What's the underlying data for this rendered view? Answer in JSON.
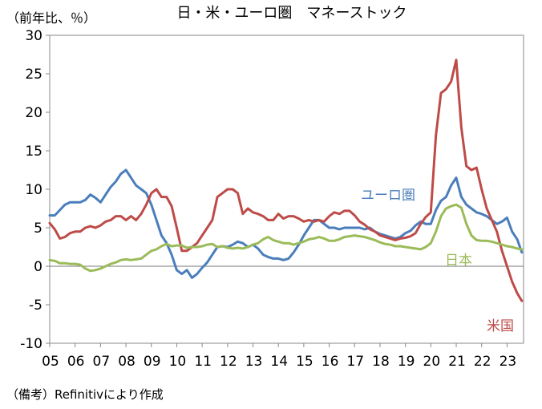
{
  "chart_data": {
    "type": "line",
    "title": "日・米・ユーロ圏　マネーストック",
    "unit_label": "（前年比、％）",
    "note": "（備考）Refinitivにより作成",
    "x_tick_labels": [
      "05",
      "06",
      "07",
      "08",
      "09",
      "10",
      "11",
      "12",
      "13",
      "14",
      "15",
      "16",
      "17",
      "18",
      "19",
      "20",
      "21",
      "22",
      "23"
    ],
    "xlim": [
      2005.0,
      2023.65
    ],
    "ylim": [
      -10,
      30
    ],
    "y_ticks": [
      30,
      25,
      20,
      15,
      10,
      5,
      0,
      -5,
      -10
    ],
    "grid": false,
    "series": [
      {
        "name": "ユーロ圏",
        "color": "#4a7ebb",
        "points": [
          [
            2005.0,
            6.6
          ],
          [
            2005.2,
            6.6
          ],
          [
            2005.4,
            7.3
          ],
          [
            2005.6,
            8.0
          ],
          [
            2005.8,
            8.3
          ],
          [
            2006.0,
            8.3
          ],
          [
            2006.2,
            8.3
          ],
          [
            2006.4,
            8.6
          ],
          [
            2006.6,
            9.3
          ],
          [
            2006.8,
            8.9
          ],
          [
            2007.0,
            8.3
          ],
          [
            2007.2,
            9.3
          ],
          [
            2007.4,
            10.3
          ],
          [
            2007.6,
            11.0
          ],
          [
            2007.8,
            12.0
          ],
          [
            2008.0,
            12.5
          ],
          [
            2008.2,
            11.5
          ],
          [
            2008.4,
            10.5
          ],
          [
            2008.6,
            10.0
          ],
          [
            2008.8,
            9.5
          ],
          [
            2009.0,
            8.0
          ],
          [
            2009.2,
            6.0
          ],
          [
            2009.4,
            4.0
          ],
          [
            2009.6,
            3.0
          ],
          [
            2009.8,
            1.5
          ],
          [
            2010.0,
            -0.5
          ],
          [
            2010.2,
            -1.0
          ],
          [
            2010.4,
            -0.5
          ],
          [
            2010.6,
            -1.5
          ],
          [
            2010.8,
            -1.0
          ],
          [
            2011.0,
            -0.2
          ],
          [
            2011.2,
            0.5
          ],
          [
            2011.4,
            1.5
          ],
          [
            2011.6,
            2.5
          ],
          [
            2011.8,
            2.6
          ],
          [
            2012.0,
            2.5
          ],
          [
            2012.2,
            2.8
          ],
          [
            2012.4,
            3.2
          ],
          [
            2012.6,
            3.0
          ],
          [
            2012.8,
            2.5
          ],
          [
            2013.0,
            2.8
          ],
          [
            2013.2,
            2.3
          ],
          [
            2013.4,
            1.5
          ],
          [
            2013.6,
            1.2
          ],
          [
            2013.8,
            1.0
          ],
          [
            2014.0,
            1.0
          ],
          [
            2014.2,
            0.8
          ],
          [
            2014.4,
            1.0
          ],
          [
            2014.6,
            1.8
          ],
          [
            2014.8,
            2.8
          ],
          [
            2015.0,
            4.0
          ],
          [
            2015.2,
            5.0
          ],
          [
            2015.4,
            6.0
          ],
          [
            2015.6,
            6.0
          ],
          [
            2015.8,
            5.5
          ],
          [
            2016.0,
            5.0
          ],
          [
            2016.2,
            5.0
          ],
          [
            2016.4,
            4.8
          ],
          [
            2016.6,
            5.0
          ],
          [
            2016.8,
            5.0
          ],
          [
            2017.0,
            5.0
          ],
          [
            2017.2,
            5.0
          ],
          [
            2017.4,
            4.8
          ],
          [
            2017.6,
            5.0
          ],
          [
            2017.8,
            4.5
          ],
          [
            2018.0,
            4.2
          ],
          [
            2018.2,
            4.0
          ],
          [
            2018.4,
            3.8
          ],
          [
            2018.6,
            3.6
          ],
          [
            2018.8,
            3.8
          ],
          [
            2019.0,
            4.3
          ],
          [
            2019.2,
            4.6
          ],
          [
            2019.4,
            5.3
          ],
          [
            2019.6,
            5.8
          ],
          [
            2019.8,
            5.5
          ],
          [
            2020.0,
            5.5
          ],
          [
            2020.2,
            7.3
          ],
          [
            2020.4,
            8.5
          ],
          [
            2020.6,
            9.0
          ],
          [
            2020.8,
            10.5
          ],
          [
            2021.0,
            11.5
          ],
          [
            2021.2,
            9.0
          ],
          [
            2021.4,
            8.0
          ],
          [
            2021.6,
            7.5
          ],
          [
            2021.8,
            7.0
          ],
          [
            2022.0,
            6.8
          ],
          [
            2022.2,
            6.5
          ],
          [
            2022.4,
            6.0
          ],
          [
            2022.6,
            5.5
          ],
          [
            2022.8,
            5.8
          ],
          [
            2023.0,
            6.3
          ],
          [
            2023.2,
            4.5
          ],
          [
            2023.4,
            3.5
          ],
          [
            2023.58,
            1.8
          ]
        ]
      },
      {
        "name": "米国",
        "color": "#be4b48",
        "points": [
          [
            2005.0,
            5.6
          ],
          [
            2005.2,
            4.8
          ],
          [
            2005.4,
            3.6
          ],
          [
            2005.6,
            3.8
          ],
          [
            2005.8,
            4.3
          ],
          [
            2006.0,
            4.5
          ],
          [
            2006.2,
            4.5
          ],
          [
            2006.4,
            5.0
          ],
          [
            2006.6,
            5.2
          ],
          [
            2006.8,
            5.0
          ],
          [
            2007.0,
            5.3
          ],
          [
            2007.2,
            5.8
          ],
          [
            2007.4,
            6.0
          ],
          [
            2007.6,
            6.5
          ],
          [
            2007.8,
            6.5
          ],
          [
            2008.0,
            6.0
          ],
          [
            2008.2,
            6.5
          ],
          [
            2008.4,
            6.0
          ],
          [
            2008.6,
            6.8
          ],
          [
            2008.8,
            8.0
          ],
          [
            2009.0,
            9.5
          ],
          [
            2009.2,
            10.0
          ],
          [
            2009.4,
            9.0
          ],
          [
            2009.6,
            9.0
          ],
          [
            2009.8,
            7.8
          ],
          [
            2010.0,
            5.0
          ],
          [
            2010.2,
            2.0
          ],
          [
            2010.4,
            2.0
          ],
          [
            2010.6,
            2.5
          ],
          [
            2010.8,
            3.0
          ],
          [
            2011.0,
            4.0
          ],
          [
            2011.2,
            5.0
          ],
          [
            2011.4,
            6.0
          ],
          [
            2011.6,
            9.0
          ],
          [
            2011.8,
            9.5
          ],
          [
            2012.0,
            10.0
          ],
          [
            2012.2,
            10.0
          ],
          [
            2012.4,
            9.5
          ],
          [
            2012.6,
            6.8
          ],
          [
            2012.8,
            7.5
          ],
          [
            2013.0,
            7.0
          ],
          [
            2013.2,
            6.8
          ],
          [
            2013.4,
            6.5
          ],
          [
            2013.6,
            6.0
          ],
          [
            2013.8,
            6.0
          ],
          [
            2014.0,
            6.8
          ],
          [
            2014.2,
            6.2
          ],
          [
            2014.4,
            6.5
          ],
          [
            2014.6,
            6.5
          ],
          [
            2014.8,
            6.2
          ],
          [
            2015.0,
            5.8
          ],
          [
            2015.2,
            6.0
          ],
          [
            2015.4,
            5.8
          ],
          [
            2015.6,
            6.0
          ],
          [
            2015.8,
            5.8
          ],
          [
            2016.0,
            6.5
          ],
          [
            2016.2,
            7.0
          ],
          [
            2016.4,
            6.8
          ],
          [
            2016.6,
            7.2
          ],
          [
            2016.8,
            7.2
          ],
          [
            2017.0,
            6.6
          ],
          [
            2017.2,
            5.8
          ],
          [
            2017.4,
            5.4
          ],
          [
            2017.6,
            4.8
          ],
          [
            2017.8,
            4.5
          ],
          [
            2018.0,
            4.0
          ],
          [
            2018.2,
            3.8
          ],
          [
            2018.4,
            3.6
          ],
          [
            2018.6,
            3.4
          ],
          [
            2018.8,
            3.6
          ],
          [
            2019.0,
            3.7
          ],
          [
            2019.2,
            3.9
          ],
          [
            2019.4,
            4.3
          ],
          [
            2019.6,
            5.5
          ],
          [
            2019.8,
            6.4
          ],
          [
            2020.0,
            7.0
          ],
          [
            2020.2,
            17.0
          ],
          [
            2020.4,
            22.5
          ],
          [
            2020.6,
            23.0
          ],
          [
            2020.8,
            24.0
          ],
          [
            2021.0,
            26.8
          ],
          [
            2021.2,
            18.0
          ],
          [
            2021.4,
            13.0
          ],
          [
            2021.6,
            12.5
          ],
          [
            2021.8,
            12.8
          ],
          [
            2022.0,
            10.0
          ],
          [
            2022.2,
            7.5
          ],
          [
            2022.4,
            6.0
          ],
          [
            2022.6,
            4.5
          ],
          [
            2022.8,
            2.0
          ],
          [
            2023.0,
            0.0
          ],
          [
            2023.2,
            -2.0
          ],
          [
            2023.4,
            -3.5
          ],
          [
            2023.58,
            -4.5
          ]
        ]
      },
      {
        "name": "日本",
        "color": "#9bbb59",
        "points": [
          [
            2005.0,
            0.8
          ],
          [
            2005.2,
            0.7
          ],
          [
            2005.4,
            0.4
          ],
          [
            2005.6,
            0.4
          ],
          [
            2005.8,
            0.3
          ],
          [
            2006.0,
            0.3
          ],
          [
            2006.2,
            0.2
          ],
          [
            2006.4,
            -0.3
          ],
          [
            2006.6,
            -0.6
          ],
          [
            2006.8,
            -0.5
          ],
          [
            2007.0,
            -0.3
          ],
          [
            2007.2,
            0.0
          ],
          [
            2007.4,
            0.3
          ],
          [
            2007.6,
            0.5
          ],
          [
            2007.8,
            0.8
          ],
          [
            2008.0,
            0.9
          ],
          [
            2008.2,
            0.8
          ],
          [
            2008.4,
            0.9
          ],
          [
            2008.6,
            1.0
          ],
          [
            2008.8,
            1.5
          ],
          [
            2009.0,
            2.0
          ],
          [
            2009.2,
            2.2
          ],
          [
            2009.4,
            2.6
          ],
          [
            2009.6,
            2.9
          ],
          [
            2009.8,
            2.6
          ],
          [
            2010.0,
            2.7
          ],
          [
            2010.2,
            2.7
          ],
          [
            2010.4,
            2.4
          ],
          [
            2010.6,
            2.5
          ],
          [
            2010.8,
            2.5
          ],
          [
            2011.0,
            2.6
          ],
          [
            2011.2,
            2.8
          ],
          [
            2011.4,
            2.9
          ],
          [
            2011.6,
            2.5
          ],
          [
            2011.8,
            2.6
          ],
          [
            2012.0,
            2.4
          ],
          [
            2012.2,
            2.3
          ],
          [
            2012.4,
            2.4
          ],
          [
            2012.6,
            2.3
          ],
          [
            2012.8,
            2.5
          ],
          [
            2013.0,
            2.8
          ],
          [
            2013.2,
            3.0
          ],
          [
            2013.4,
            3.5
          ],
          [
            2013.6,
            3.8
          ],
          [
            2013.8,
            3.4
          ],
          [
            2014.0,
            3.2
          ],
          [
            2014.2,
            3.0
          ],
          [
            2014.4,
            3.0
          ],
          [
            2014.6,
            2.8
          ],
          [
            2014.8,
            3.0
          ],
          [
            2015.0,
            3.2
          ],
          [
            2015.2,
            3.5
          ],
          [
            2015.4,
            3.6
          ],
          [
            2015.6,
            3.8
          ],
          [
            2015.8,
            3.6
          ],
          [
            2016.0,
            3.3
          ],
          [
            2016.2,
            3.3
          ],
          [
            2016.4,
            3.5
          ],
          [
            2016.6,
            3.8
          ],
          [
            2016.8,
            3.9
          ],
          [
            2017.0,
            4.0
          ],
          [
            2017.2,
            3.9
          ],
          [
            2017.4,
            3.8
          ],
          [
            2017.6,
            3.6
          ],
          [
            2017.8,
            3.4
          ],
          [
            2018.0,
            3.1
          ],
          [
            2018.2,
            2.9
          ],
          [
            2018.4,
            2.8
          ],
          [
            2018.6,
            2.6
          ],
          [
            2018.8,
            2.6
          ],
          [
            2019.0,
            2.5
          ],
          [
            2019.2,
            2.4
          ],
          [
            2019.4,
            2.3
          ],
          [
            2019.6,
            2.2
          ],
          [
            2019.8,
            2.5
          ],
          [
            2020.0,
            3.0
          ],
          [
            2020.2,
            4.5
          ],
          [
            2020.4,
            6.5
          ],
          [
            2020.6,
            7.5
          ],
          [
            2020.8,
            7.8
          ],
          [
            2021.0,
            8.0
          ],
          [
            2021.2,
            7.6
          ],
          [
            2021.4,
            5.5
          ],
          [
            2021.6,
            4.0
          ],
          [
            2021.8,
            3.4
          ],
          [
            2022.0,
            3.3
          ],
          [
            2022.2,
            3.3
          ],
          [
            2022.4,
            3.2
          ],
          [
            2022.6,
            3.0
          ],
          [
            2022.8,
            2.8
          ],
          [
            2023.0,
            2.6
          ],
          [
            2023.2,
            2.5
          ],
          [
            2023.4,
            2.3
          ],
          [
            2023.58,
            2.2
          ]
        ]
      }
    ]
  }
}
